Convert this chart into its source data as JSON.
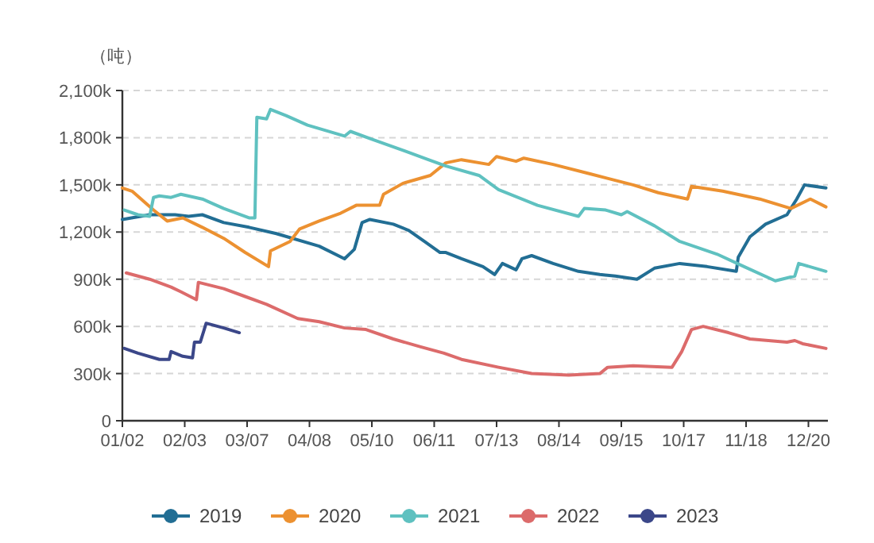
{
  "chart_data": {
    "type": "line",
    "ylabel": "（吨）",
    "legend": "bottom",
    "grid": "y",
    "xlim": [
      "--01-02",
      "--12-30"
    ],
    "xticks": [
      {
        "value": "--01-02",
        "label": "01/02"
      },
      {
        "value": "--02-03",
        "label": "02/03"
      },
      {
        "value": "--03-07",
        "label": "03/07"
      },
      {
        "value": "--04-08",
        "label": "04/08"
      },
      {
        "value": "--05-10",
        "label": "05/10"
      },
      {
        "value": "--06-11",
        "label": "06/11"
      },
      {
        "value": "--07-13",
        "label": "07/13"
      },
      {
        "value": "--08-14",
        "label": "08/14"
      },
      {
        "value": "--09-15",
        "label": "09/15"
      },
      {
        "value": "--10-17",
        "label": "10/17"
      },
      {
        "value": "--11-18",
        "label": "11/18"
      },
      {
        "value": "--12-20",
        "label": "12/20"
      }
    ],
    "ylim": [
      0,
      2100
    ],
    "yticks": [
      0,
      {
        "value": 300,
        "label": "300k"
      },
      {
        "value": 600,
        "label": "600k"
      },
      {
        "value": 900,
        "label": "900k"
      },
      {
        "value": 1200,
        "label": "1,200k"
      },
      {
        "value": 1500,
        "label": "1,500k"
      },
      {
        "value": 1800,
        "label": "1,800k"
      },
      {
        "value": 2100,
        "label": "2,100k"
      }
    ],
    "series": [
      {
        "name": "2019",
        "color": "#226e94",
        "x": [
          "--01-02",
          "--01-16",
          "--01-29",
          "--02-05",
          "--02-12",
          "--02-23",
          "--03-08",
          "--03-22",
          "--04-13",
          "--04-26",
          "--05-01",
          "--05-05",
          "--05-09",
          "--05-21",
          "--05-29",
          "--06-06",
          "--06-14",
          "--06-17",
          "--06-25",
          "--07-06",
          "--07-12",
          "--07-16",
          "--07-23",
          "--07-26",
          "--07-31",
          "--08-11",
          "--08-24",
          "--09-04",
          "--09-12",
          "--09-23",
          "--10-02",
          "--10-15",
          "--10-29",
          "--11-13",
          "--11-14",
          "--11-20",
          "--11-28",
          "--12-09",
          "--12-14",
          "--12-18",
          "--12-29"
        ],
        "values": [
          1280,
          1310,
          1310,
          1300,
          1310,
          1260,
          1230,
          1190,
          1110,
          1030,
          1090,
          1260,
          1280,
          1250,
          1210,
          1140,
          1070,
          1070,
          1030,
          980,
          930,
          1000,
          960,
          1030,
          1050,
          1000,
          950,
          930,
          920,
          900,
          970,
          1000,
          980,
          950,
          1040,
          1170,
          1250,
          1310,
          1410,
          1500,
          1480
        ]
      },
      {
        "name": "2020",
        "color": "#ec9131",
        "x": [
          "--01-02",
          "--01-07",
          "--01-18",
          "--01-25",
          "--02-02",
          "--02-12",
          "--02-23",
          "--03-06",
          "--03-18",
          "--03-19",
          "--03-29",
          "--04-03",
          "--04-13",
          "--04-24",
          "--05-02",
          "--05-14",
          "--05-16",
          "--05-26",
          "--06-09",
          "--06-17",
          "--06-25",
          "--07-09",
          "--07-13",
          "--07-23",
          "--07-27",
          "--08-11",
          "--08-30",
          "--09-21",
          "--10-04",
          "--10-19",
          "--10-21",
          "--11-06",
          "--11-25",
          "--12-11",
          "--12-21",
          "--12-29"
        ],
        "values": [
          1480,
          1460,
          1340,
          1270,
          1290,
          1230,
          1160,
          1070,
          980,
          1080,
          1140,
          1220,
          1270,
          1320,
          1370,
          1370,
          1440,
          1510,
          1560,
          1640,
          1660,
          1630,
          1680,
          1650,
          1670,
          1630,
          1570,
          1500,
          1450,
          1410,
          1490,
          1460,
          1410,
          1350,
          1410,
          1360
        ]
      },
      {
        "name": "2021",
        "color": "#5fc1c0",
        "x": [
          "--01-03",
          "--01-10",
          "--01-16",
          "--01-18",
          "--01-21",
          "--01-27",
          "--02-01",
          "--02-12",
          "--02-23",
          "--03-08",
          "--03-11",
          "--03-12",
          "--03-17",
          "--03-19",
          "--03-27",
          "--04-07",
          "--04-26",
          "--04-29",
          "--05-10",
          "--05-26",
          "--06-08",
          "--06-17",
          "--07-04",
          "--07-14",
          "--08-03",
          "--08-24",
          "--08-27",
          "--09-07",
          "--09-15",
          "--09-18",
          "--10-02",
          "--10-15",
          "--11-03",
          "--11-17",
          "--12-03",
          "--12-13",
          "--12-15",
          "--12-29"
        ],
        "values": [
          1340,
          1310,
          1300,
          1420,
          1430,
          1420,
          1440,
          1410,
          1350,
          1290,
          1290,
          1930,
          1920,
          1980,
          1940,
          1880,
          1810,
          1840,
          1790,
          1720,
          1660,
          1620,
          1560,
          1470,
          1370,
          1300,
          1350,
          1340,
          1310,
          1330,
          1240,
          1140,
          1060,
          980,
          890,
          920,
          1000,
          950
        ]
      },
      {
        "name": "2022",
        "color": "#dc6b6b",
        "x": [
          "--01-04",
          "--01-16",
          "--01-27",
          "--02-01",
          "--02-09",
          "--02-10",
          "--02-23",
          "--03-06",
          "--03-17",
          "--04-02",
          "--04-13",
          "--04-26",
          "--05-07",
          "--05-21",
          "--06-04",
          "--06-16",
          "--06-25",
          "--07-14",
          "--07-31",
          "--08-19",
          "--09-04",
          "--09-08",
          "--09-21",
          "--10-11",
          "--10-16",
          "--10-21",
          "--10-27",
          "--11-09",
          "--11-20",
          "--12-09",
          "--12-13",
          "--12-17",
          "--12-29"
        ],
        "values": [
          940,
          900,
          850,
          820,
          770,
          880,
          840,
          790,
          740,
          650,
          630,
          590,
          580,
          520,
          470,
          430,
          390,
          340,
          300,
          290,
          300,
          340,
          350,
          340,
          440,
          580,
          600,
          560,
          520,
          500,
          510,
          490,
          460
        ]
      },
      {
        "name": "2023",
        "color": "#3b4789",
        "x": [
          "--01-03",
          "--01-10",
          "--01-21",
          "--01-26",
          "--01-27",
          "--02-02",
          "--02-07",
          "--02-08",
          "--02-11",
          "--02-14",
          "--02-23",
          "--03-03"
        ],
        "values": [
          460,
          430,
          390,
          390,
          440,
          410,
          400,
          500,
          500,
          620,
          590,
          560
        ]
      }
    ]
  }
}
